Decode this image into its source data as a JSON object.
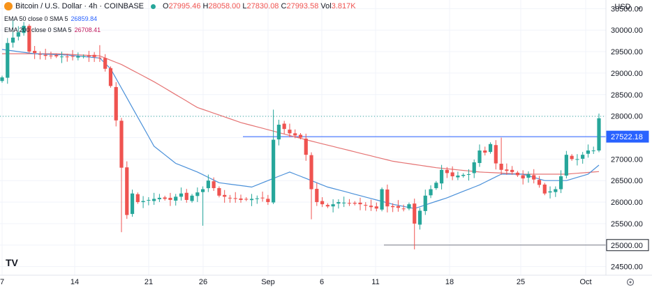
{
  "header": {
    "title": "Bitcoin / U.S. Dollar · 4h · COINBASE",
    "o_label": "O",
    "o_value": "27995.46",
    "h_label": "H",
    "h_value": "28058.00",
    "l_label": "L",
    "l_value": "27830.08",
    "c_label": "C",
    "c_value": "27993.58",
    "vol_label": "Vol",
    "vol_value": "3.817K"
  },
  "indicators": {
    "ema50_label": "EMA 50 close 0 SMA 5",
    "ema50_value": "26859.84",
    "ema200_label": "EMA 200 close 0 SMA 5",
    "ema200_value": "26708.41"
  },
  "currency": "USD",
  "logo_text": "TV",
  "colors": {
    "up": "#26a69a",
    "down": "#ef5350",
    "ema50": "#4a90d9",
    "ema200": "#e57373",
    "level_line": "#2962ff",
    "grid": "#f0f3fa"
  },
  "chart_data": {
    "type": "candlestick",
    "ylim": [
      24300,
      30700
    ],
    "y_ticks": [
      "30500.00",
      "30000.00",
      "29500.00",
      "29000.00",
      "28500.00",
      "28000.00",
      "27500.00",
      "27000.00",
      "26500.00",
      "26000.00",
      "25500.00",
      "25000.00",
      "24500.00"
    ],
    "x_ticks": [
      "7",
      "14",
      "21",
      "26",
      "Sep",
      "6",
      "11",
      "18",
      "25",
      "Oct"
    ],
    "price_labels": [
      {
        "text": "27522.18",
        "value": 27522.18,
        "style": "filled"
      },
      {
        "text": "25000.00",
        "value": 25000,
        "style": "outline"
      }
    ],
    "horizontal_levels": [
      27522.18,
      25000
    ],
    "last_price": 27993.58,
    "price_path": [
      [
        0,
        28900
      ],
      [
        1,
        29700
      ],
      [
        3,
        29950
      ],
      [
        4,
        30100
      ],
      [
        5,
        29500
      ],
      [
        8,
        29400
      ],
      [
        12,
        29380
      ],
      [
        16,
        29400
      ],
      [
        18,
        29350
      ],
      [
        19,
        29100
      ],
      [
        20,
        28700
      ],
      [
        21,
        27900
      ],
      [
        22,
        26800
      ],
      [
        23,
        25700
      ],
      [
        24,
        26200
      ],
      [
        25,
        26000
      ],
      [
        29,
        26100
      ],
      [
        31,
        26050
      ],
      [
        33,
        26200
      ],
      [
        34,
        26050
      ],
      [
        35,
        26150
      ],
      [
        37,
        26300
      ],
      [
        38,
        26500
      ],
      [
        40,
        26150
      ],
      [
        44,
        26050
      ],
      [
        48,
        26100
      ],
      [
        49,
        26000
      ],
      [
        50,
        27450
      ],
      [
        51,
        27800
      ],
      [
        53,
        27600
      ],
      [
        55,
        27500
      ],
      [
        56,
        27100
      ],
      [
        57,
        26300
      ],
      [
        58,
        26000
      ],
      [
        60,
        25900
      ],
      [
        62,
        26000
      ],
      [
        66,
        25950
      ],
      [
        69,
        25850
      ],
      [
        70,
        26300
      ],
      [
        71,
        25900
      ],
      [
        74,
        25850
      ],
      [
        75,
        25950
      ],
      [
        76,
        25500
      ],
      [
        77,
        25800
      ],
      [
        78,
        26150
      ],
      [
        80,
        26450
      ],
      [
        81,
        26750
      ],
      [
        83,
        26600
      ],
      [
        86,
        26650
      ],
      [
        88,
        27200
      ],
      [
        89,
        27150
      ],
      [
        90,
        27350
      ],
      [
        91,
        26900
      ],
      [
        92,
        26750
      ],
      [
        94,
        26700
      ],
      [
        96,
        26550
      ],
      [
        97,
        26650
      ],
      [
        99,
        26400
      ],
      [
        100,
        26200
      ],
      [
        102,
        26300
      ],
      [
        103,
        26600
      ],
      [
        104,
        27100
      ],
      [
        105,
        27000
      ],
      [
        106,
        27000
      ],
      [
        108,
        27200
      ],
      [
        109,
        27200
      ],
      [
        110,
        27950
      ]
    ],
    "spikes": [
      {
        "i": 2,
        "high": 30250
      },
      {
        "i": 18,
        "high": 29650
      },
      {
        "i": 22,
        "low": 25300
      },
      {
        "i": 50,
        "high": 28150
      },
      {
        "i": 37,
        "low": 25450
      },
      {
        "i": 57,
        "low": 25600
      },
      {
        "i": 76,
        "low": 24900
      },
      {
        "i": 92,
        "high": 27500
      },
      {
        "i": 110,
        "high": 28058
      }
    ],
    "ema50": [
      [
        0,
        29550
      ],
      [
        6,
        29450
      ],
      [
        12,
        29420
      ],
      [
        18,
        29350
      ],
      [
        20,
        29100
      ],
      [
        24,
        28200
      ],
      [
        28,
        27300
      ],
      [
        32,
        26900
      ],
      [
        36,
        26700
      ],
      [
        40,
        26450
      ],
      [
        46,
        26350
      ],
      [
        50,
        26550
      ],
      [
        53,
        26700
      ],
      [
        56,
        26550
      ],
      [
        60,
        26350
      ],
      [
        66,
        26150
      ],
      [
        72,
        25950
      ],
      [
        76,
        25850
      ],
      [
        82,
        26100
      ],
      [
        88,
        26400
      ],
      [
        92,
        26650
      ],
      [
        96,
        26650
      ],
      [
        100,
        26500
      ],
      [
        104,
        26500
      ],
      [
        108,
        26650
      ],
      [
        110,
        26860
      ]
    ],
    "ema200": [
      [
        0,
        29450
      ],
      [
        10,
        29450
      ],
      [
        18,
        29400
      ],
      [
        22,
        29200
      ],
      [
        28,
        28800
      ],
      [
        36,
        28200
      ],
      [
        44,
        27850
      ],
      [
        50,
        27650
      ],
      [
        56,
        27450
      ],
      [
        64,
        27200
      ],
      [
        72,
        26950
      ],
      [
        80,
        26800
      ],
      [
        88,
        26700
      ],
      [
        96,
        26650
      ],
      [
        104,
        26650
      ],
      [
        110,
        26710
      ]
    ]
  }
}
